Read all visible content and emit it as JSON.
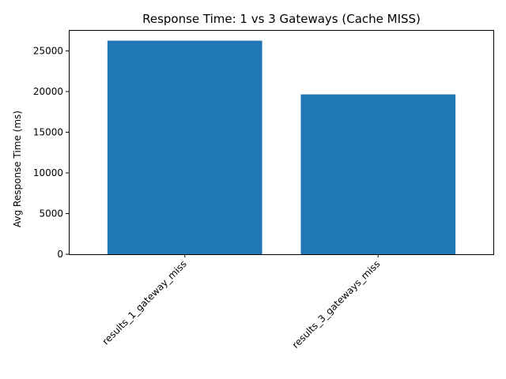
{
  "chart_data": {
    "type": "bar",
    "title": "Response Time: 1 vs 3 Gateways (Cache MISS)",
    "xlabel": "",
    "ylabel": "Avg Response Time (ms)",
    "categories": [
      "results_1_gateway_miss",
      "results_3_gateways_miss"
    ],
    "values": [
      26250,
      19650
    ],
    "ylim": [
      0,
      27562
    ],
    "yticks": [
      0,
      5000,
      10000,
      15000,
      20000,
      25000
    ],
    "grid": false,
    "legend": "none",
    "bar_color": "#1f77b4"
  }
}
